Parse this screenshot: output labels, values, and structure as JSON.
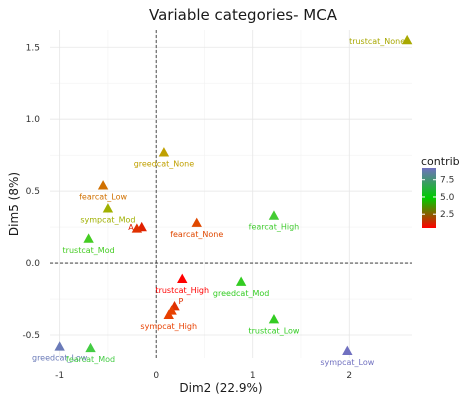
{
  "chart_data": {
    "type": "scatter",
    "title": "Variable categories- MCA",
    "xlabel": "Dim2 (22.9%)",
    "ylabel": "Dim5 (8%)",
    "xlim": [
      -1.1,
      2.65
    ],
    "ylim": [
      -0.66,
      1.62
    ],
    "x_ticks": [
      -1,
      0,
      1,
      2
    ],
    "y_ticks": [
      -0.5,
      0.0,
      0.5,
      1.0,
      1.5
    ],
    "x_tick_labels": [
      "-1",
      "0",
      "1",
      "2"
    ],
    "y_tick_labels": [
      "-0.5",
      "0.0",
      "0.5",
      "1.0",
      "1.5"
    ],
    "grid": true,
    "reference_lines": {
      "x": 0,
      "y": 0
    },
    "marker": "triangle",
    "legend": {
      "title": "contrib",
      "position": "right",
      "ticks": [
        2.5,
        5.0,
        7.5
      ],
      "tick_labels": [
        "2.5",
        "5.0",
        "7.5"
      ],
      "range": [
        0.5,
        9.2
      ],
      "colors": [
        "#ff0000",
        "#00cc00",
        "#7070c0"
      ]
    },
    "points": [
      {
        "label": "trustcat_None",
        "x": 2.6,
        "y": 1.55,
        "color": "#a8a800"
      },
      {
        "label": "greedcat_None",
        "x": 0.08,
        "y": 0.77,
        "color": "#c0a000"
      },
      {
        "label": "fearcat_Low",
        "x": -0.55,
        "y": 0.54,
        "color": "#d07000"
      },
      {
        "label": "sympcat_Mod",
        "x": -0.5,
        "y": 0.38,
        "color": "#a0b000"
      },
      {
        "label": "trustcat_Mod",
        "x": -0.7,
        "y": 0.17,
        "color": "#44cc22"
      },
      {
        "label": "A",
        "x": -0.15,
        "y": 0.25,
        "color": "#e02000"
      },
      {
        "label": "",
        "x": -0.2,
        "y": 0.24,
        "color": "#e03000"
      },
      {
        "label": "fearcat_None",
        "x": 0.42,
        "y": 0.28,
        "color": "#e04800"
      },
      {
        "label": "fearcat_High",
        "x": 1.22,
        "y": 0.33,
        "color": "#44cc33"
      },
      {
        "label": "trustcat_High",
        "x": 0.27,
        "y": -0.11,
        "color": "#ff0000"
      },
      {
        "label": "greedcat_Mod",
        "x": 0.88,
        "y": -0.13,
        "color": "#33cc22"
      },
      {
        "label": "P",
        "x": 0.19,
        "y": -0.3,
        "color": "#e03000"
      },
      {
        "label": "",
        "x": 0.16,
        "y": -0.33,
        "color": "#e84000"
      },
      {
        "label": "sympcat_High",
        "x": 0.13,
        "y": -0.36,
        "color": "#e84000"
      },
      {
        "label": "trustcat_Low",
        "x": 1.22,
        "y": -0.39,
        "color": "#33cc22"
      },
      {
        "label": "greedcat_Low",
        "x": -1.0,
        "y": -0.58,
        "color": "#6a7ab8"
      },
      {
        "label": "fearcat_Mod",
        "x": -0.68,
        "y": -0.59,
        "color": "#44cc44"
      },
      {
        "label": "sympcat_Low",
        "x": 1.98,
        "y": -0.61,
        "color": "#7070c0"
      }
    ]
  }
}
